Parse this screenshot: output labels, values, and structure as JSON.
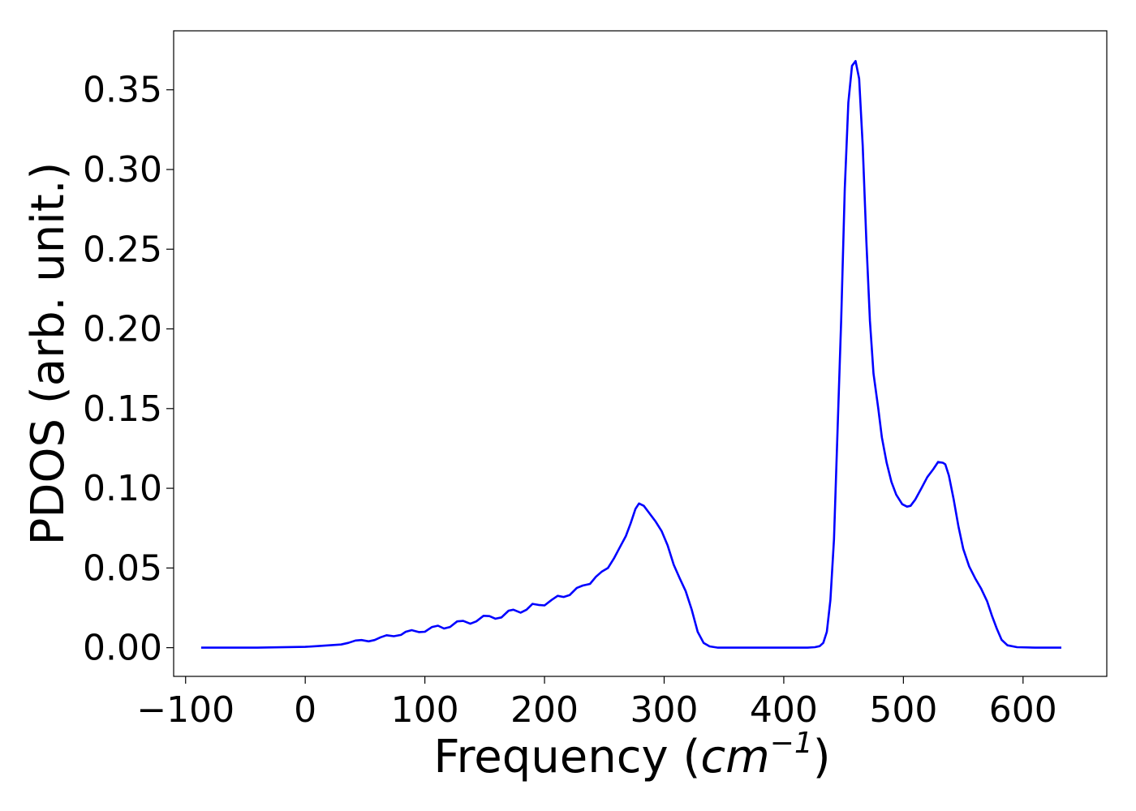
{
  "chart_data": {
    "type": "line",
    "title": "",
    "xlabel_main": "Frequency (",
    "xlabel_unit": "cm",
    "xlabel_exp": "−1",
    "xlabel_close": ")",
    "ylabel": "PDOS (arb. unit.)",
    "xlim": [
      -110,
      670
    ],
    "ylim": [
      -0.018,
      0.387
    ],
    "xticks": [
      -100,
      0,
      100,
      200,
      300,
      400,
      500,
      600
    ],
    "xtick_labels": [
      "−100",
      "0",
      "100",
      "200",
      "300",
      "400",
      "500",
      "600"
    ],
    "yticks": [
      0.0,
      0.05,
      0.1,
      0.15,
      0.2,
      0.25,
      0.3,
      0.35
    ],
    "ytick_labels": [
      "0.00",
      "0.05",
      "0.10",
      "0.15",
      "0.20",
      "0.25",
      "0.30",
      "0.35"
    ],
    "grid": false,
    "legend": "none",
    "series": [
      {
        "color": "#0000ff",
        "x": [
          -87,
          -40,
          0,
          10,
          20,
          30,
          36,
          42,
          47,
          53,
          58,
          63,
          68,
          74,
          80,
          84,
          89,
          95,
          100,
          106,
          111,
          116,
          121,
          127,
          132,
          138,
          143,
          149,
          154,
          159,
          164,
          170,
          174,
          180,
          185,
          190,
          195,
          200,
          206,
          211,
          216,
          221,
          227,
          232,
          238,
          243,
          248,
          253,
          258,
          263,
          268,
          272,
          276,
          279,
          283,
          288,
          293,
          298,
          303,
          308,
          313,
          318,
          323,
          328,
          333,
          338,
          345,
          360,
          380,
          400,
          420,
          426,
          430,
          433,
          436,
          439,
          442,
          445,
          448,
          451,
          454,
          457,
          460,
          463,
          466,
          469,
          472,
          475,
          479,
          482,
          486,
          490,
          494,
          499,
          503,
          506,
          510,
          515,
          520,
          525,
          529,
          533,
          535,
          538,
          542,
          546,
          550,
          555,
          560,
          565,
          570,
          574,
          578,
          582,
          587,
          595,
          610,
          632
        ],
        "y": [
          0,
          0,
          0.0005,
          0.001,
          0.0015,
          0.002,
          0.003,
          0.0045,
          0.0048,
          0.004,
          0.0048,
          0.0065,
          0.0078,
          0.0072,
          0.008,
          0.01,
          0.011,
          0.0098,
          0.01,
          0.013,
          0.0138,
          0.012,
          0.013,
          0.0165,
          0.0168,
          0.015,
          0.0165,
          0.02,
          0.0198,
          0.0182,
          0.019,
          0.0232,
          0.0238,
          0.022,
          0.0238,
          0.0275,
          0.0268,
          0.0265,
          0.03,
          0.0325,
          0.0318,
          0.033,
          0.0375,
          0.039,
          0.04,
          0.0445,
          0.0478,
          0.05,
          0.056,
          0.063,
          0.07,
          0.078,
          0.087,
          0.0905,
          0.089,
          0.084,
          0.079,
          0.073,
          0.064,
          0.052,
          0.0435,
          0.0355,
          0.024,
          0.01,
          0.003,
          0.0008,
          0,
          0,
          0,
          0,
          0,
          0.0003,
          0.001,
          0.003,
          0.01,
          0.03,
          0.068,
          0.138,
          0.206,
          0.288,
          0.342,
          0.365,
          0.368,
          0.357,
          0.315,
          0.255,
          0.205,
          0.172,
          0.15,
          0.132,
          0.116,
          0.104,
          0.096,
          0.09,
          0.0885,
          0.089,
          0.093,
          0.1,
          0.107,
          0.112,
          0.1165,
          0.116,
          0.115,
          0.108,
          0.093,
          0.076,
          0.062,
          0.051,
          0.0435,
          0.037,
          0.029,
          0.02,
          0.012,
          0.005,
          0.0015,
          0.0003,
          0,
          0
        ]
      }
    ]
  }
}
